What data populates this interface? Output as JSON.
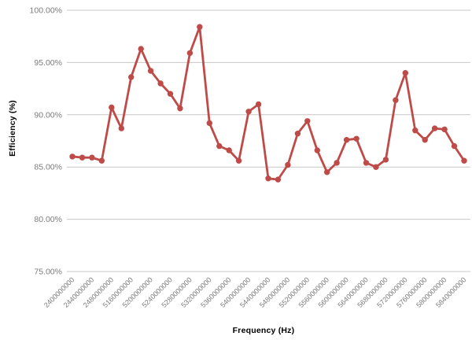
{
  "chart_data": {
    "type": "line",
    "title": "",
    "xlabel": "Frequency (Hz)",
    "ylabel": "Efficiency (%)",
    "ylim": [
      75,
      100
    ],
    "grid": true,
    "legend": "none",
    "line_color": "#BE4B48",
    "gridline_color": "#c7c7c7",
    "tick_label_color": "#7b7b7b",
    "y_tick_labels": [
      "100.00%",
      "95.00%",
      "90.00%",
      "85.00%",
      "80.00%",
      "75.00%"
    ],
    "y_tick_values": [
      100,
      95,
      90,
      85,
      80,
      75
    ],
    "x_tick_labels": [
      "2400000000",
      "2440000000",
      "2480000000",
      "5160000000",
      "5200000000",
      "5240000000",
      "5280000000",
      "5320000000",
      "5360000000",
      "5400000000",
      "5440000000",
      "5480000000",
      "5520000000",
      "5560000000",
      "5600000000",
      "5640000000",
      "5680000000",
      "5720000000",
      "5760000000",
      "5800000000",
      "5840000000"
    ],
    "x_label_interval": 2,
    "categories": [
      "2400000000",
      "2420000000",
      "2440000000",
      "2460000000",
      "2480000000",
      "5140000000",
      "5160000000",
      "5180000000",
      "5200000000",
      "5220000000",
      "5240000000",
      "5260000000",
      "5280000000",
      "5300000000",
      "5320000000",
      "5340000000",
      "5360000000",
      "5380000000",
      "5400000000",
      "5420000000",
      "5440000000",
      "5460000000",
      "5480000000",
      "5500000000",
      "5520000000",
      "5540000000",
      "5560000000",
      "5580000000",
      "5600000000",
      "5620000000",
      "5640000000",
      "5660000000",
      "5680000000",
      "5700000000",
      "5720000000",
      "5740000000",
      "5760000000",
      "5780000000",
      "5800000000",
      "5820000000",
      "5840000000"
    ],
    "series": [
      {
        "values": [
          86.0,
          85.9,
          85.9,
          85.6,
          90.7,
          88.7,
          93.6,
          96.3,
          94.2,
          93.0,
          92.0,
          90.6,
          95.9,
          98.4,
          89.2,
          87.0,
          86.6,
          85.6,
          90.3,
          91.0,
          83.9,
          83.8,
          85.2,
          88.2,
          89.4,
          86.6,
          84.5,
          85.4,
          87.6,
          87.7,
          85.4,
          85.0,
          85.7,
          91.4,
          94.0,
          88.5,
          87.6,
          88.7,
          88.6,
          87.0,
          85.6
        ]
      }
    ]
  }
}
